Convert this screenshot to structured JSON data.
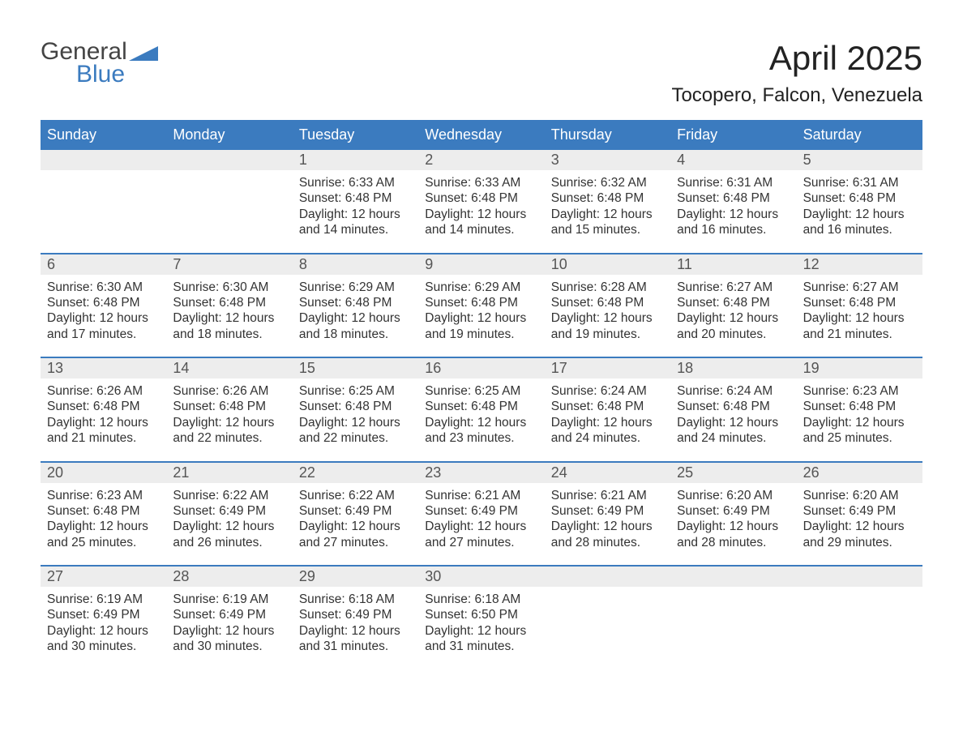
{
  "logo": {
    "line1": "General",
    "line2": "Blue"
  },
  "title": "April 2025",
  "location": "Tocopero, Falcon, Venezuela",
  "colors": {
    "header_bg": "#3b7bbf",
    "header_text": "#ffffff",
    "daynum_bg": "#ededed",
    "daynum_text": "#555555",
    "body_text": "#333333",
    "rule": "#3b7bbf",
    "page_bg": "#ffffff"
  },
  "typography": {
    "title_fontsize": 42,
    "location_fontsize": 24,
    "dayheader_fontsize": 18,
    "daynum_fontsize": 18,
    "cell_fontsize": 15.5
  },
  "day_headers": [
    "Sunday",
    "Monday",
    "Tuesday",
    "Wednesday",
    "Thursday",
    "Friday",
    "Saturday"
  ],
  "weeks": [
    [
      {
        "day": "",
        "sunrise": "",
        "sunset": "",
        "daylight": ""
      },
      {
        "day": "",
        "sunrise": "",
        "sunset": "",
        "daylight": ""
      },
      {
        "day": "1",
        "sunrise": "Sunrise: 6:33 AM",
        "sunset": "Sunset: 6:48 PM",
        "daylight": "Daylight: 12 hours and 14 minutes."
      },
      {
        "day": "2",
        "sunrise": "Sunrise: 6:33 AM",
        "sunset": "Sunset: 6:48 PM",
        "daylight": "Daylight: 12 hours and 14 minutes."
      },
      {
        "day": "3",
        "sunrise": "Sunrise: 6:32 AM",
        "sunset": "Sunset: 6:48 PM",
        "daylight": "Daylight: 12 hours and 15 minutes."
      },
      {
        "day": "4",
        "sunrise": "Sunrise: 6:31 AM",
        "sunset": "Sunset: 6:48 PM",
        "daylight": "Daylight: 12 hours and 16 minutes."
      },
      {
        "day": "5",
        "sunrise": "Sunrise: 6:31 AM",
        "sunset": "Sunset: 6:48 PM",
        "daylight": "Daylight: 12 hours and 16 minutes."
      }
    ],
    [
      {
        "day": "6",
        "sunrise": "Sunrise: 6:30 AM",
        "sunset": "Sunset: 6:48 PM",
        "daylight": "Daylight: 12 hours and 17 minutes."
      },
      {
        "day": "7",
        "sunrise": "Sunrise: 6:30 AM",
        "sunset": "Sunset: 6:48 PM",
        "daylight": "Daylight: 12 hours and 18 minutes."
      },
      {
        "day": "8",
        "sunrise": "Sunrise: 6:29 AM",
        "sunset": "Sunset: 6:48 PM",
        "daylight": "Daylight: 12 hours and 18 minutes."
      },
      {
        "day": "9",
        "sunrise": "Sunrise: 6:29 AM",
        "sunset": "Sunset: 6:48 PM",
        "daylight": "Daylight: 12 hours and 19 minutes."
      },
      {
        "day": "10",
        "sunrise": "Sunrise: 6:28 AM",
        "sunset": "Sunset: 6:48 PM",
        "daylight": "Daylight: 12 hours and 19 minutes."
      },
      {
        "day": "11",
        "sunrise": "Sunrise: 6:27 AM",
        "sunset": "Sunset: 6:48 PM",
        "daylight": "Daylight: 12 hours and 20 minutes."
      },
      {
        "day": "12",
        "sunrise": "Sunrise: 6:27 AM",
        "sunset": "Sunset: 6:48 PM",
        "daylight": "Daylight: 12 hours and 21 minutes."
      }
    ],
    [
      {
        "day": "13",
        "sunrise": "Sunrise: 6:26 AM",
        "sunset": "Sunset: 6:48 PM",
        "daylight": "Daylight: 12 hours and 21 minutes."
      },
      {
        "day": "14",
        "sunrise": "Sunrise: 6:26 AM",
        "sunset": "Sunset: 6:48 PM",
        "daylight": "Daylight: 12 hours and 22 minutes."
      },
      {
        "day": "15",
        "sunrise": "Sunrise: 6:25 AM",
        "sunset": "Sunset: 6:48 PM",
        "daylight": "Daylight: 12 hours and 22 minutes."
      },
      {
        "day": "16",
        "sunrise": "Sunrise: 6:25 AM",
        "sunset": "Sunset: 6:48 PM",
        "daylight": "Daylight: 12 hours and 23 minutes."
      },
      {
        "day": "17",
        "sunrise": "Sunrise: 6:24 AM",
        "sunset": "Sunset: 6:48 PM",
        "daylight": "Daylight: 12 hours and 24 minutes."
      },
      {
        "day": "18",
        "sunrise": "Sunrise: 6:24 AM",
        "sunset": "Sunset: 6:48 PM",
        "daylight": "Daylight: 12 hours and 24 minutes."
      },
      {
        "day": "19",
        "sunrise": "Sunrise: 6:23 AM",
        "sunset": "Sunset: 6:48 PM",
        "daylight": "Daylight: 12 hours and 25 minutes."
      }
    ],
    [
      {
        "day": "20",
        "sunrise": "Sunrise: 6:23 AM",
        "sunset": "Sunset: 6:48 PM",
        "daylight": "Daylight: 12 hours and 25 minutes."
      },
      {
        "day": "21",
        "sunrise": "Sunrise: 6:22 AM",
        "sunset": "Sunset: 6:49 PM",
        "daylight": "Daylight: 12 hours and 26 minutes."
      },
      {
        "day": "22",
        "sunrise": "Sunrise: 6:22 AM",
        "sunset": "Sunset: 6:49 PM",
        "daylight": "Daylight: 12 hours and 27 minutes."
      },
      {
        "day": "23",
        "sunrise": "Sunrise: 6:21 AM",
        "sunset": "Sunset: 6:49 PM",
        "daylight": "Daylight: 12 hours and 27 minutes."
      },
      {
        "day": "24",
        "sunrise": "Sunrise: 6:21 AM",
        "sunset": "Sunset: 6:49 PM",
        "daylight": "Daylight: 12 hours and 28 minutes."
      },
      {
        "day": "25",
        "sunrise": "Sunrise: 6:20 AM",
        "sunset": "Sunset: 6:49 PM",
        "daylight": "Daylight: 12 hours and 28 minutes."
      },
      {
        "day": "26",
        "sunrise": "Sunrise: 6:20 AM",
        "sunset": "Sunset: 6:49 PM",
        "daylight": "Daylight: 12 hours and 29 minutes."
      }
    ],
    [
      {
        "day": "27",
        "sunrise": "Sunrise: 6:19 AM",
        "sunset": "Sunset: 6:49 PM",
        "daylight": "Daylight: 12 hours and 30 minutes."
      },
      {
        "day": "28",
        "sunrise": "Sunrise: 6:19 AM",
        "sunset": "Sunset: 6:49 PM",
        "daylight": "Daylight: 12 hours and 30 minutes."
      },
      {
        "day": "29",
        "sunrise": "Sunrise: 6:18 AM",
        "sunset": "Sunset: 6:49 PM",
        "daylight": "Daylight: 12 hours and 31 minutes."
      },
      {
        "day": "30",
        "sunrise": "Sunrise: 6:18 AM",
        "sunset": "Sunset: 6:50 PM",
        "daylight": "Daylight: 12 hours and 31 minutes."
      },
      {
        "day": "",
        "sunrise": "",
        "sunset": "",
        "daylight": ""
      },
      {
        "day": "",
        "sunrise": "",
        "sunset": "",
        "daylight": ""
      },
      {
        "day": "",
        "sunrise": "",
        "sunset": "",
        "daylight": ""
      }
    ]
  ]
}
